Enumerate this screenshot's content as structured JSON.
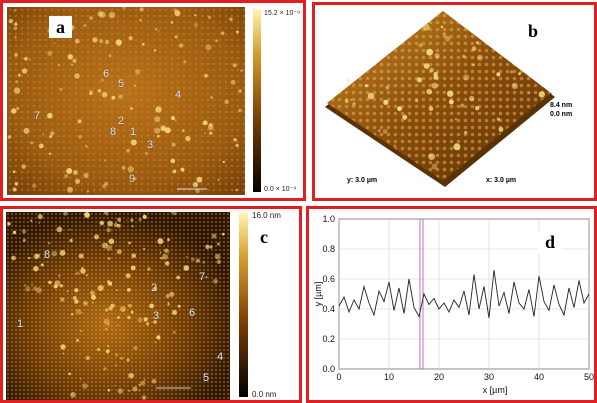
{
  "panels": {
    "a": {
      "letter": "a",
      "colorbar_max": "15.2 × 10⁻⁹",
      "colorbar_min": "0.0 × 10⁻⁹"
    },
    "b": {
      "letter": "b",
      "z_max": "8.4 nm",
      "z_min": "0.0 nm",
      "y_label": "y: 3.0 µm",
      "x_label": "x: 3.0 µm"
    },
    "c": {
      "letter": "c",
      "colorbar_max": "16.0 nm",
      "colorbar_min": "0.0 nm"
    },
    "d": {
      "letter": "d"
    }
  },
  "markers_a": [
    "6",
    "5",
    "4",
    "7",
    "2",
    "8",
    "1",
    "3",
    "9"
  ],
  "markers_c": [
    "8",
    "2",
    "7",
    "1",
    "3",
    "6",
    "4",
    "5"
  ],
  "colors": {
    "frame": "#e02020",
    "afm_dark": "#3a1e05",
    "afm_mid": "#a8640f",
    "afm_light": "#f6d66a"
  },
  "chart_data": {
    "type": "line",
    "xlabel": "x [µm]",
    "ylabel": "y [µm]",
    "xlim": [
      0,
      50
    ],
    "ylim": [
      0.0,
      1.0
    ],
    "xticks": [
      "0",
      "10",
      "20",
      "30",
      "40",
      "50"
    ],
    "yticks": [
      "0.0",
      "0.2",
      "0.4",
      "0.6",
      "0.8",
      "1.0"
    ],
    "grid": true,
    "cursor_x": 16.5,
    "series": [
      {
        "x": [
          0,
          1,
          2,
          3,
          4,
          5,
          6,
          7,
          8,
          9,
          10,
          11,
          12,
          13,
          14,
          15,
          16,
          17,
          18,
          19,
          20,
          21,
          22,
          23,
          24,
          25,
          26,
          27,
          28,
          29,
          30,
          31,
          32,
          33,
          34,
          35,
          36,
          37,
          38,
          39,
          40,
          41,
          42,
          43,
          44,
          45,
          46,
          47,
          48,
          49,
          50
        ],
        "values": [
          0.42,
          0.48,
          0.38,
          0.46,
          0.4,
          0.55,
          0.44,
          0.36,
          0.52,
          0.45,
          0.58,
          0.39,
          0.54,
          0.37,
          0.6,
          0.41,
          0.35,
          0.5,
          0.43,
          0.47,
          0.4,
          0.44,
          0.38,
          0.46,
          0.41,
          0.52,
          0.36,
          0.63,
          0.4,
          0.55,
          0.34,
          0.66,
          0.42,
          0.51,
          0.37,
          0.58,
          0.44,
          0.4,
          0.53,
          0.35,
          0.62,
          0.45,
          0.39,
          0.56,
          0.43,
          0.36,
          0.54,
          0.41,
          0.59,
          0.44,
          0.5
        ]
      }
    ]
  }
}
